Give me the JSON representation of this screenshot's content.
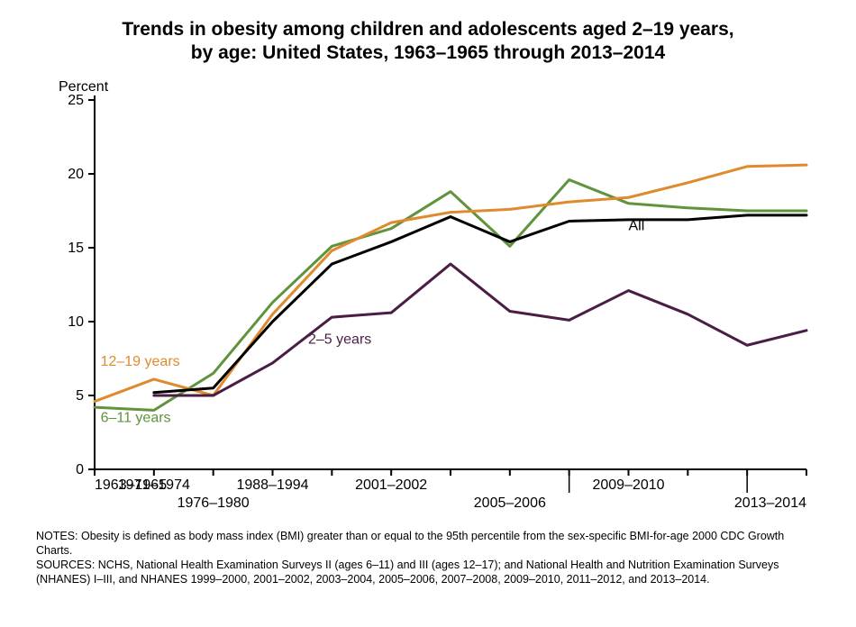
{
  "title_line1": "Trends in obesity among children and adolescents aged 2–19 years,",
  "title_line2": "by age: United States, 1963–1965 through 2013–2014",
  "y_axis_label": "Percent",
  "notes_line1": "NOTES: Obesity is defined as body mass index (BMI) greater than or equal to the 95th percentile from the sex-specific BMI-for-age 2000 CDC Growth Charts.",
  "notes_line2": "SOURCES: NCHS, National Health Examination Surveys II (ages 6–11) and III (ages 12–17); and National Health and Nutrition Examination Surveys (NHANES) I–III, and  NHANES 1999–2000, 2001–2002, 2003–2004, 2005–2006, 2007–2008, 2009–2010, 2011–2012, and 2013–2014.",
  "chart": {
    "type": "line",
    "background_color": "#ffffff",
    "axis_color": "#000000",
    "axis_line_width": 2,
    "line_width": 3,
    "title_fontsize": 21,
    "axis_label_fontsize": 16,
    "tick_fontsize": 16,
    "inline_label_fontsize": 16,
    "y": {
      "min": 0,
      "max": 25,
      "step": 5,
      "ticks": [
        0,
        5,
        10,
        15,
        20,
        25
      ]
    },
    "x_positions": [
      0,
      1,
      2,
      3,
      4,
      5,
      6,
      7,
      8,
      9,
      10,
      11,
      12
    ],
    "x_min": 0,
    "x_max": 12,
    "x_tick_labels": [
      {
        "pos": 0,
        "label": "1963–1965",
        "row": 0
      },
      {
        "pos": 1,
        "label": "1971–1974",
        "row": 0
      },
      {
        "pos": 2,
        "label": "1976–1980",
        "row": 1
      },
      {
        "pos": 3,
        "label": "1988–1994",
        "row": 0
      },
      {
        "pos": 5,
        "label": "2001–2002",
        "row": 0
      },
      {
        "pos": 7,
        "label": "2005–2006",
        "row": 1
      },
      {
        "pos": 9,
        "label": "2009–2010",
        "row": 0
      },
      {
        "pos": 12,
        "label": "2013–2014",
        "row": 1
      }
    ],
    "x_separator_ticks": [
      8,
      11
    ],
    "series": [
      {
        "name": "6–11 years",
        "color": "#5f933c",
        "label": "6–11 years",
        "label_pos": {
          "x": 0.1,
          "y": 3.2
        },
        "values": [
          {
            "x": 0,
            "y": 4.2
          },
          {
            "x": 1,
            "y": 4.0
          },
          {
            "x": 2,
            "y": 6.5
          },
          {
            "x": 3,
            "y": 11.3
          },
          {
            "x": 4,
            "y": 15.1
          },
          {
            "x": 5,
            "y": 16.3
          },
          {
            "x": 6,
            "y": 18.8
          },
          {
            "x": 7,
            "y": 15.1
          },
          {
            "x": 8,
            "y": 19.6
          },
          {
            "x": 9,
            "y": 18.0
          },
          {
            "x": 10,
            "y": 17.7
          },
          {
            "x": 11,
            "y": 17.5
          },
          {
            "x": 12,
            "y": 17.5
          }
        ]
      },
      {
        "name": "12–19 years",
        "color": "#e08a2e",
        "label": "12–19 years",
        "label_pos": {
          "x": 0.1,
          "y": 7.0
        },
        "values": [
          {
            "x": 0,
            "y": 4.6
          },
          {
            "x": 1,
            "y": 6.1
          },
          {
            "x": 2,
            "y": 5.0
          },
          {
            "x": 3,
            "y": 10.5
          },
          {
            "x": 4,
            "y": 14.8
          },
          {
            "x": 5,
            "y": 16.7
          },
          {
            "x": 6,
            "y": 17.4
          },
          {
            "x": 7,
            "y": 17.6
          },
          {
            "x": 8,
            "y": 18.1
          },
          {
            "x": 9,
            "y": 18.4
          },
          {
            "x": 10,
            "y": 19.4
          },
          {
            "x": 11,
            "y": 20.5
          },
          {
            "x": 12,
            "y": 20.6
          }
        ]
      },
      {
        "name": "2–5 years",
        "color": "#4a1e44",
        "label": "2–5 years",
        "label_pos": {
          "x": 3.6,
          "y": 8.5
        },
        "values": [
          {
            "x": 1,
            "y": 5.0
          },
          {
            "x": 2,
            "y": 5.0
          },
          {
            "x": 3,
            "y": 7.2
          },
          {
            "x": 4,
            "y": 10.3
          },
          {
            "x": 5,
            "y": 10.6
          },
          {
            "x": 6,
            "y": 13.9
          },
          {
            "x": 7,
            "y": 10.7
          },
          {
            "x": 8,
            "y": 10.1
          },
          {
            "x": 9,
            "y": 12.1
          },
          {
            "x": 10,
            "y": 10.5
          },
          {
            "x": 11,
            "y": 8.4
          },
          {
            "x": 12,
            "y": 9.4
          }
        ]
      },
      {
        "name": "All",
        "color": "#000000",
        "label": "All",
        "label_pos": {
          "x": 9.0,
          "y": 16.2
        },
        "values": [
          {
            "x": 1,
            "y": 5.2
          },
          {
            "x": 2,
            "y": 5.5
          },
          {
            "x": 3,
            "y": 10.0
          },
          {
            "x": 4,
            "y": 13.9
          },
          {
            "x": 5,
            "y": 15.4
          },
          {
            "x": 6,
            "y": 17.1
          },
          {
            "x": 7,
            "y": 15.4
          },
          {
            "x": 8,
            "y": 16.8
          },
          {
            "x": 9,
            "y": 16.9
          },
          {
            "x": 10,
            "y": 16.9
          },
          {
            "x": 11,
            "y": 17.2
          },
          {
            "x": 12,
            "y": 17.2
          }
        ]
      }
    ]
  }
}
